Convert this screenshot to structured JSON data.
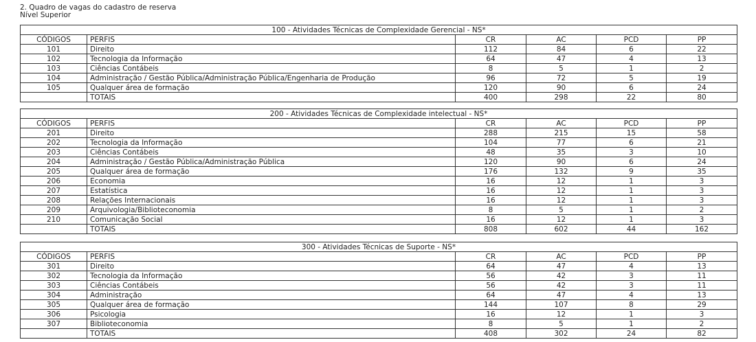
{
  "heading": "2. Quadro de vagas do cadastro de reserva",
  "subheading": "Nível Superior",
  "columns": [
    "CÓDIGOS",
    "PERFIS",
    "CR",
    "AC",
    "PCD",
    "PP"
  ],
  "tables": [
    {
      "title": "100 - Atividades Técnicas de Complexidade Gerencial - NS*",
      "rows": [
        [
          "101",
          "Direito",
          "112",
          "84",
          "6",
          "22"
        ],
        [
          "102",
          "Tecnologia da Informação",
          "64",
          "47",
          "4",
          "13"
        ],
        [
          "103",
          "Ciências Contábeis",
          "8",
          "5",
          "1",
          "2"
        ],
        [
          "104",
          "Administração / Gestão Pública/Administração Pública/Engenharia de Produção",
          "96",
          "72",
          "5",
          "19"
        ],
        [
          "105",
          "Qualquer área de formação",
          "120",
          "90",
          "6",
          "24"
        ],
        [
          "",
          "TOTAIS",
          "400",
          "298",
          "22",
          "80"
        ]
      ]
    },
    {
      "title": "200 - Atividades Técnicas de Complexidade intelectual - NS*",
      "rows": [
        [
          "201",
          "Direito",
          "288",
          "215",
          "15",
          "58"
        ],
        [
          "202",
          "Tecnologia da Informação",
          "104",
          "77",
          "6",
          "21"
        ],
        [
          "203",
          "Ciências Contábeis",
          "48",
          "35",
          "3",
          "10"
        ],
        [
          "204",
          "Administração / Gestão Pública/Administração Pública",
          "120",
          "90",
          "6",
          "24"
        ],
        [
          "205",
          "Qualquer área de formação",
          "176",
          "132",
          "9",
          "35"
        ],
        [
          "206",
          "Economia",
          "16",
          "12",
          "1",
          "3"
        ],
        [
          "207",
          "Estatística",
          "16",
          "12",
          "1",
          "3"
        ],
        [
          "208",
          "Relações Internacionais",
          "16",
          "12",
          "1",
          "3"
        ],
        [
          "209",
          "Arquivologia/Biblioteconomia",
          "8",
          "5",
          "1",
          "2"
        ],
        [
          "210",
          "Comunicação Social",
          "16",
          "12",
          "1",
          "3"
        ],
        [
          "",
          "TOTAIS",
          "808",
          "602",
          "44",
          "162"
        ]
      ]
    },
    {
      "title": "300 - Atividades Técnicas de Suporte - NS*",
      "rows": [
        [
          "301",
          "Direito",
          "64",
          "47",
          "4",
          "13"
        ],
        [
          "302",
          "Tecnologia da Informação",
          "56",
          "42",
          "3",
          "11"
        ],
        [
          "303",
          "Ciências Contábeis",
          "56",
          "42",
          "3",
          "11"
        ],
        [
          "304",
          "Administração",
          "64",
          "47",
          "4",
          "13"
        ],
        [
          "305",
          "Qualquer área de formação",
          "144",
          "107",
          "8",
          "29"
        ],
        [
          "306",
          "Psicologia",
          "16",
          "12",
          "1",
          "3"
        ],
        [
          "307",
          "Biblioteconomia",
          "8",
          "5",
          "1",
          "2"
        ],
        [
          "",
          "TOTAIS",
          "408",
          "302",
          "24",
          "82"
        ]
      ]
    }
  ]
}
